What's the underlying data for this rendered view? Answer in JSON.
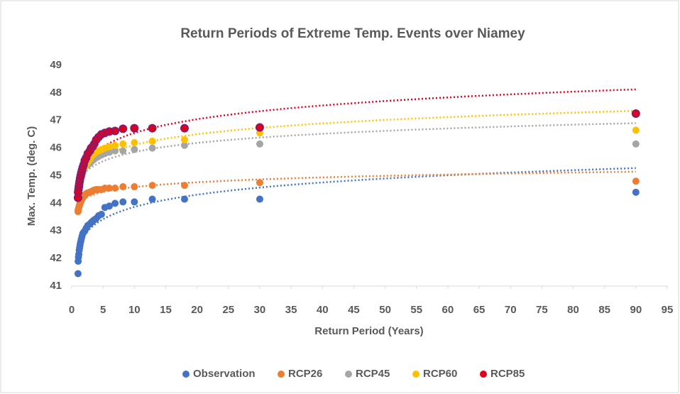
{
  "chart_data": {
    "type": "scatter",
    "title": "Return Periods of Extreme Temp. Events over Niamey",
    "x_label": "Return Period (Years)",
    "y_label": "Max. Temp. (deg. C)",
    "x": [
      90,
      30,
      18,
      12.86,
      10,
      8.18,
      6.92,
      6,
      5.29,
      4.74,
      4.29,
      3.91,
      3.6,
      3.33,
      3.1,
      2.9,
      2.57,
      2.31,
      2.09,
      1.91,
      1.76,
      1.64,
      1.53,
      1.43,
      1.34,
      1.27,
      1.2,
      1.14,
      1.08,
      1.03,
      1.01
    ],
    "series": [
      {
        "name": "Observation",
        "color": "#4472c4",
        "values": [
          44.4,
          44.15,
          44.15,
          44.15,
          44.05,
          44.05,
          44.0,
          43.9,
          43.85,
          43.6,
          43.55,
          43.45,
          43.4,
          43.35,
          43.3,
          43.25,
          43.2,
          43.1,
          43.0,
          42.95,
          42.9,
          42.8,
          42.7,
          42.6,
          42.5,
          42.4,
          42.3,
          42.15,
          42.05,
          41.9,
          41.45
        ]
      },
      {
        "name": "RCP26",
        "color": "#ed7d31",
        "values": [
          44.8,
          44.75,
          44.65,
          44.65,
          44.6,
          44.6,
          44.55,
          44.55,
          44.55,
          44.5,
          44.5,
          44.5,
          44.48,
          44.45,
          44.42,
          44.4,
          44.38,
          44.35,
          44.3,
          44.25,
          44.2,
          44.15,
          44.1,
          44.05,
          44.0,
          43.95,
          43.9,
          43.85,
          43.8,
          43.75,
          43.7
        ]
      },
      {
        "name": "RCP45",
        "color": "#a5a5a5",
        "values": [
          46.15,
          46.15,
          46.1,
          46.0,
          45.95,
          45.9,
          45.9,
          45.85,
          45.8,
          45.75,
          45.7,
          45.65,
          45.6,
          45.55,
          45.5,
          45.45,
          45.4,
          45.35,
          45.3,
          45.2,
          45.1,
          45.0,
          44.95,
          44.9,
          44.8,
          44.7,
          44.6,
          44.5,
          44.4,
          44.3,
          44.2
        ]
      },
      {
        "name": "RCP60",
        "color": "#ffc000",
        "values": [
          46.65,
          46.55,
          46.3,
          46.25,
          46.2,
          46.15,
          46.1,
          46.05,
          46.0,
          45.95,
          45.9,
          45.85,
          45.8,
          45.75,
          45.7,
          45.6,
          45.5,
          45.4,
          45.3,
          45.25,
          45.2,
          45.1,
          45.0,
          44.95,
          44.9,
          44.8,
          44.7,
          44.6,
          44.5,
          44.4,
          44.3
        ]
      },
      {
        "name": "RCP85",
        "color": "#e0001b",
        "values": [
          47.25,
          46.75,
          46.72,
          46.72,
          46.72,
          46.7,
          46.62,
          46.6,
          46.55,
          46.5,
          46.4,
          46.3,
          46.15,
          46.05,
          46.0,
          45.9,
          45.8,
          45.65,
          45.55,
          45.4,
          45.3,
          45.2,
          45.1,
          45.0,
          44.9,
          44.8,
          44.7,
          44.6,
          44.5,
          44.4,
          44.2
        ]
      }
    ],
    "trendline": "logarithmic",
    "xlim": [
      0,
      95
    ],
    "xticks": [
      0,
      5,
      10,
      15,
      20,
      25,
      30,
      35,
      40,
      45,
      50,
      55,
      60,
      65,
      70,
      75,
      80,
      85,
      90,
      95
    ],
    "ylim": [
      41,
      49
    ],
    "yticks": [
      41,
      42,
      43,
      44,
      45,
      46,
      47,
      48,
      49
    ],
    "legend": "bottom"
  }
}
